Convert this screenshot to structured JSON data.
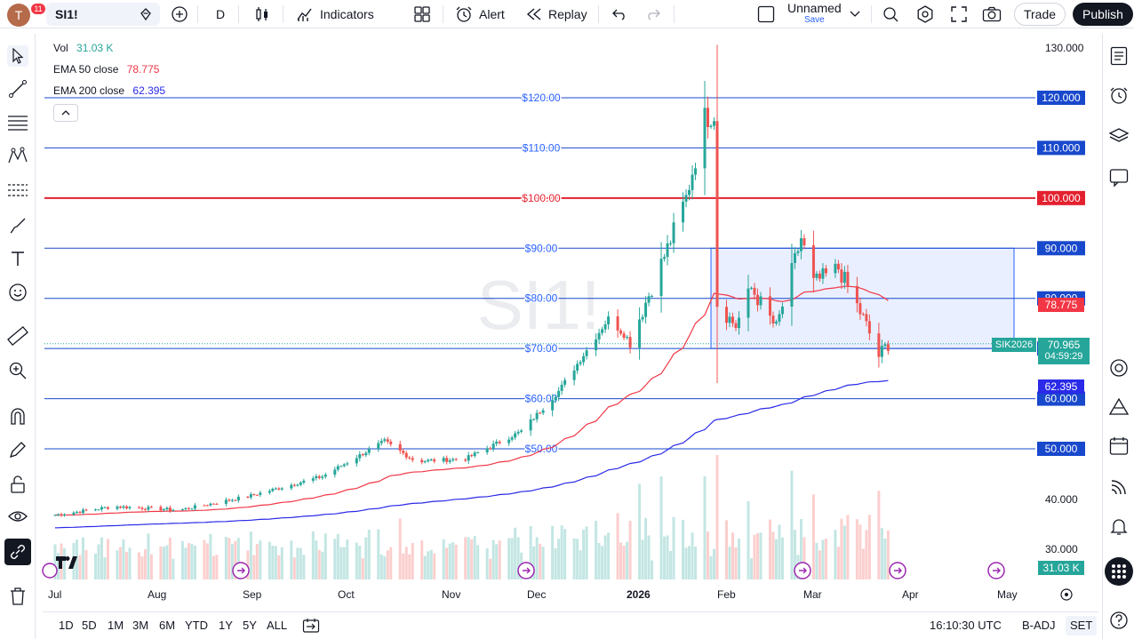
{
  "topbar": {
    "avatar_letter": "T",
    "avatar_badge": "11",
    "symbol": "SI1!",
    "interval": "D",
    "indicators_label": "Indicators",
    "alert_label": "Alert",
    "replay_label": "Replay",
    "layout_name": "Unnamed",
    "layout_save": "Save",
    "trade_label": "Trade",
    "publish_label": "Publish"
  },
  "legend": {
    "vol_label": "Vol",
    "vol_value": "31.03 K",
    "ema50_label": "EMA 50 close",
    "ema50_value": "78.775",
    "ema200_label": "EMA 200 close",
    "ema200_value": "62.395"
  },
  "watermark": "SI1!",
  "colors": {
    "up": "#26a69a",
    "down": "#ef5350",
    "ema50": "#f23645",
    "ema200": "#2a2ae8",
    "hline": "#1848cc",
    "hline_red": "#e3212f",
    "accent": "#2962ff",
    "rect_fill": "rgba(41,98,255,0.10)"
  },
  "chart_data": {
    "type": "candlestick",
    "symbol": "SI1!",
    "ylim": [
      25,
      132
    ],
    "price_axis_ticks": [
      "130.000",
      "40.000",
      "30.000"
    ],
    "horizontal_levels": [
      {
        "price": 120,
        "label": "$120.00",
        "axis_label": "120.000",
        "color": "blue"
      },
      {
        "price": 110,
        "label": "$110.00",
        "axis_label": "110.000",
        "color": "blue"
      },
      {
        "price": 100,
        "label": "$100.00",
        "axis_label": "100.000",
        "color": "red"
      },
      {
        "price": 90,
        "label": "$90.00",
        "axis_label": "90.000",
        "color": "blue"
      },
      {
        "price": 80,
        "label": "$80.00",
        "axis_label": "80.000",
        "color": "blue"
      },
      {
        "price": 70,
        "label": "$70.00",
        "axis_label": "70.000",
        "color": "blue"
      },
      {
        "price": 60,
        "label": "$60.00",
        "axis_label": "60.000",
        "color": "blue"
      },
      {
        "price": 50,
        "label": "$50.00",
        "axis_label": "50.000",
        "color": "blue"
      }
    ],
    "range_box": {
      "start": "2026-01-28",
      "end": "2026-04-14",
      "top": 90,
      "bottom": 70
    },
    "time_labels": [
      "Jul",
      "Aug",
      "Sep",
      "Oct",
      "Nov",
      "Dec",
      "2026",
      "Feb",
      "Mar",
      "Apr",
      "May"
    ],
    "last_price": "70.965",
    "countdown": "04:59:29",
    "contract": "SIK2026",
    "ema50_last": "78.775",
    "ema200_last": "62.395",
    "volume_last": "31.03 K",
    "waypoints": [
      {
        "date": "2025-07-01",
        "close": 36.8
      },
      {
        "date": "2025-07-20",
        "close": 38.5
      },
      {
        "date": "2025-08-10",
        "close": 37.8
      },
      {
        "date": "2025-09-01",
        "close": 40.5
      },
      {
        "date": "2025-09-25",
        "close": 44.5
      },
      {
        "date": "2025-10-15",
        "close": 51.5
      },
      {
        "date": "2025-10-25",
        "close": 47.5
      },
      {
        "date": "2025-11-10",
        "close": 48.0
      },
      {
        "date": "2025-11-28",
        "close": 53.5
      },
      {
        "date": "2025-12-10",
        "close": 61.5
      },
      {
        "date": "2025-12-26",
        "close": 76.0
      },
      {
        "date": "2026-01-02",
        "close": 71.5
      },
      {
        "date": "2026-01-14",
        "close": 90.0
      },
      {
        "date": "2026-01-20",
        "close": 100.0
      },
      {
        "date": "2026-01-26",
        "close": 116.0
      },
      {
        "date": "2026-01-29",
        "close": 117.0
      },
      {
        "date": "2026-01-30",
        "close": 79.0
      },
      {
        "date": "2026-02-05",
        "close": 74.5
      },
      {
        "date": "2026-02-10",
        "close": 82.0
      },
      {
        "date": "2026-02-18",
        "close": 74.0
      },
      {
        "date": "2026-02-26",
        "close": 92.0
      },
      {
        "date": "2026-03-02",
        "close": 83.0
      },
      {
        "date": "2026-03-10",
        "close": 86.0
      },
      {
        "date": "2026-03-18",
        "close": 76.0
      },
      {
        "date": "2026-03-23",
        "close": 68.5
      },
      {
        "date": "2026-03-26",
        "close": 70.965
      }
    ]
  },
  "bottombar": {
    "ranges": [
      "1D",
      "5D",
      "1M",
      "3M",
      "6M",
      "YTD",
      "1Y",
      "5Y",
      "ALL"
    ],
    "clock": "16:10:30 UTC",
    "adj": "B-ADJ",
    "session": "SET"
  }
}
